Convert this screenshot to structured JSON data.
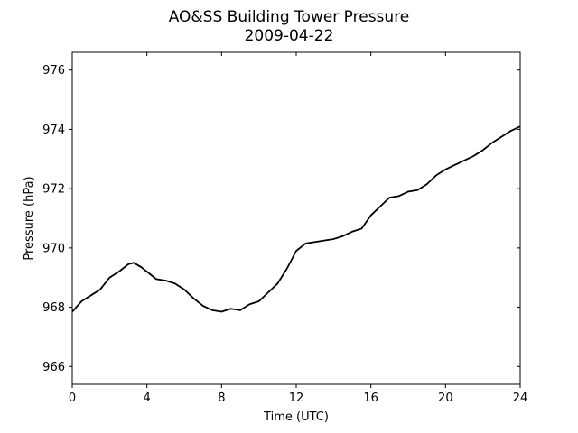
{
  "chart_data": {
    "type": "line",
    "title": "AO&SS Building Tower Pressure",
    "subtitle": "2009-04-22",
    "xlabel": "Time (UTC)",
    "ylabel": "Pressure (hPa)",
    "xlim": [
      0,
      24
    ],
    "ylim": [
      965.4,
      976.6
    ],
    "xticks": [
      0,
      4,
      8,
      12,
      16,
      20,
      24
    ],
    "yticks": [
      966,
      968,
      970,
      972,
      974,
      976
    ],
    "grid": false,
    "line_color": "#000000",
    "series": [
      {
        "x": [
          0,
          0.5,
          1,
          1.5,
          2,
          2.5,
          3,
          3.3,
          3.7,
          4,
          4.5,
          5,
          5.5,
          6,
          6.5,
          7,
          7.5,
          8,
          8.5,
          9,
          9.5,
          10,
          10.5,
          11,
          11.5,
          12,
          12.5,
          13,
          13.5,
          14,
          14.5,
          15,
          15.5,
          16,
          16.5,
          17,
          17.5,
          18,
          18.5,
          19,
          19.5,
          20,
          20.5,
          21,
          21.5,
          22,
          22.5,
          23,
          23.5,
          24
        ],
        "y": [
          967.85,
          968.2,
          968.4,
          968.6,
          969.0,
          969.2,
          969.45,
          969.5,
          969.35,
          969.2,
          968.95,
          968.9,
          968.8,
          968.6,
          968.3,
          968.05,
          967.9,
          967.85,
          967.95,
          967.9,
          968.1,
          968.2,
          968.5,
          968.8,
          969.3,
          969.9,
          970.15,
          970.2,
          970.25,
          970.3,
          970.4,
          970.55,
          970.65,
          971.1,
          971.4,
          971.7,
          971.75,
          971.9,
          971.95,
          972.15,
          972.45,
          972.65,
          972.8,
          972.95,
          973.1,
          973.3,
          973.55,
          973.75,
          973.95,
          974.1
        ]
      }
    ]
  }
}
